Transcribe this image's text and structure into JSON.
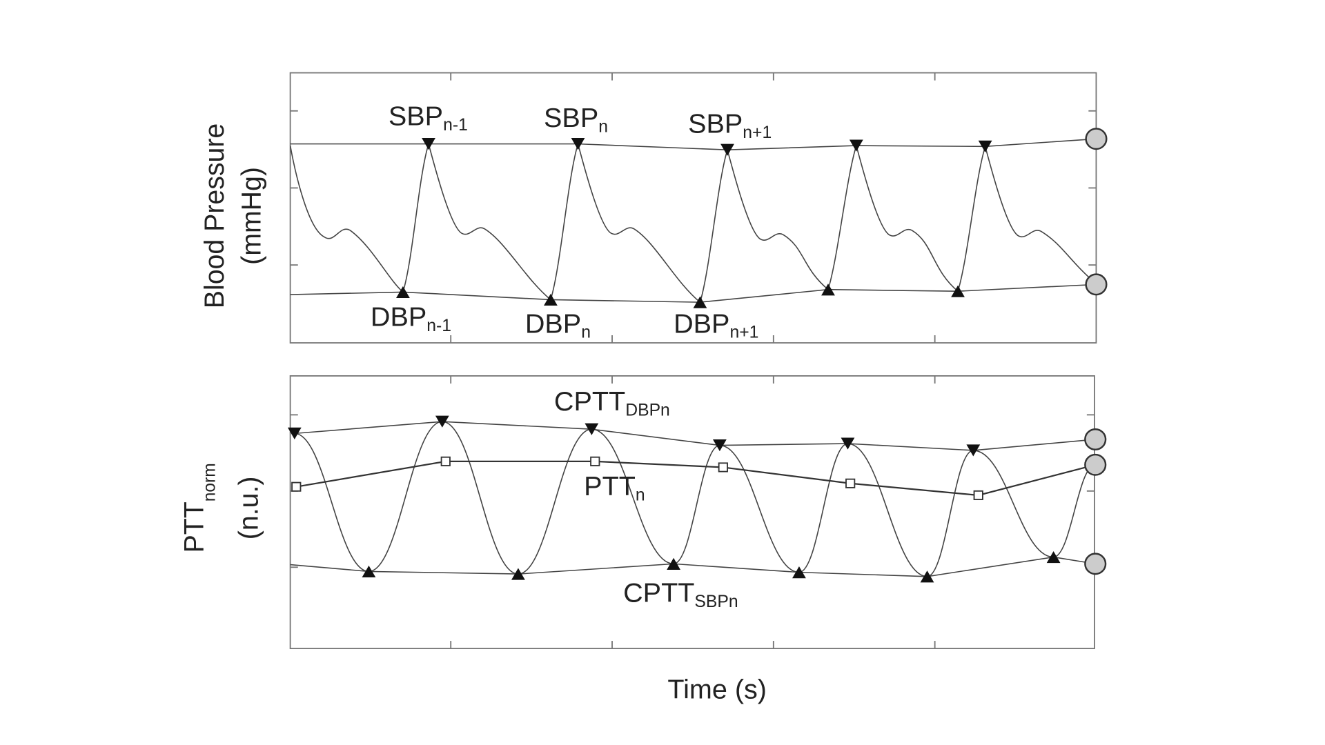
{
  "panels": [
    {
      "y_label": [
        "Blood Pressure",
        "(mmHg)"
      ],
      "annotations": [
        {
          "text": "SBP",
          "sub": "n-1"
        },
        {
          "text": "SBP",
          "sub": "n"
        },
        {
          "text": "SBP",
          "sub": "n+1"
        },
        {
          "text": "DBP",
          "sub": "n-1"
        },
        {
          "text": "DBP",
          "sub": "n"
        },
        {
          "text": "DBP",
          "sub": "n+1"
        }
      ]
    },
    {
      "y_label": {
        "main": "PTT",
        "sub": "norm",
        "line2": "(n.u.)"
      },
      "annotations": [
        {
          "text": "CPTT",
          "sub": "DBPn"
        },
        {
          "text": "PTT",
          "sub": "n"
        },
        {
          "text": "CPTT",
          "sub": "SBPn"
        }
      ]
    }
  ],
  "x_label": "Time (s)"
}
